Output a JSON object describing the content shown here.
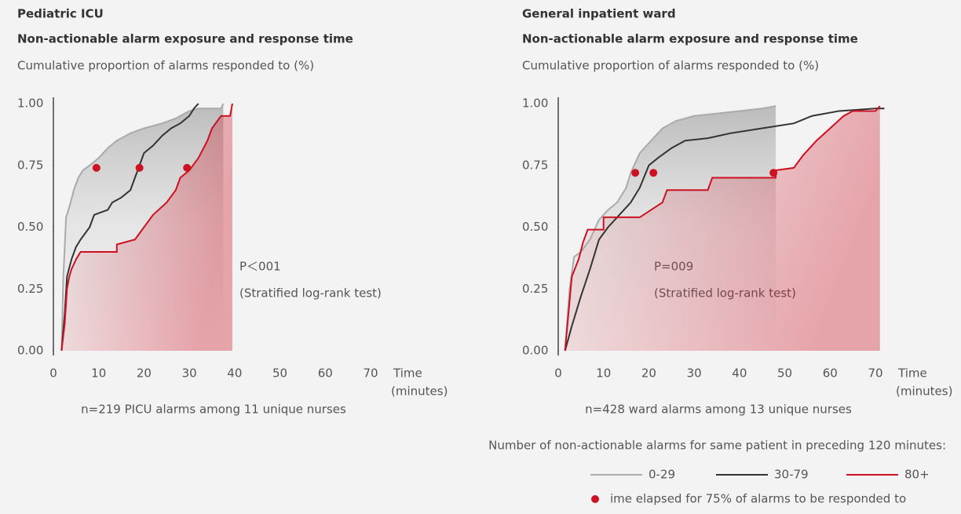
{
  "chart_data": [
    {
      "type": "line",
      "title": "Pediatric ICU",
      "subtitle": "Non-actionable alarm exposure and response time",
      "y_label": "Cumulative proportion of alarms responded to (%)",
      "x_label": [
        "Time",
        "(minutes)"
      ],
      "xlim": [
        0,
        70
      ],
      "xticks": [
        0,
        10,
        20,
        30,
        40,
        50,
        60,
        70
      ],
      "ylim": [
        0,
        1
      ],
      "yticks": [
        {
          "value": 0,
          "label": "0.00"
        },
        {
          "value": 0.25,
          "label": "0.25"
        },
        {
          "value": 0.5,
          "label": "0.50"
        },
        {
          "value": 0.75,
          "label": "0.75"
        },
        {
          "value": 1,
          "label": "1.00"
        }
      ],
      "annotation": [
        "P＜001",
        "(Stratified log-rank test)"
      ],
      "note": "n=219 PICU alarms among 11 unique nurses",
      "series": [
        {
          "name": "0-29",
          "color": "#aaaaaa",
          "x": [
            1.8,
            2.2,
            2.8,
            3.5,
            4.5,
            5.5,
            6.5,
            8,
            10,
            12,
            14,
            17,
            20,
            24,
            27,
            30,
            32,
            37,
            37.5
          ],
          "values": [
            0,
            0.3,
            0.54,
            0.58,
            0.65,
            0.7,
            0.73,
            0.75,
            0.78,
            0.82,
            0.85,
            0.88,
            0.9,
            0.92,
            0.94,
            0.97,
            0.98,
            0.98,
            1
          ]
        },
        {
          "name": "30-79",
          "color": "#333333",
          "x": [
            1.8,
            2.5,
            3,
            4,
            5,
            6,
            8,
            9,
            12,
            13,
            15,
            17,
            18,
            19,
            20,
            22,
            24,
            26,
            28,
            30,
            31,
            32
          ],
          "values": [
            0,
            0.15,
            0.3,
            0.37,
            0.42,
            0.45,
            0.5,
            0.55,
            0.57,
            0.6,
            0.62,
            0.65,
            0.7,
            0.75,
            0.8,
            0.83,
            0.87,
            0.9,
            0.92,
            0.95,
            0.98,
            1
          ]
        },
        {
          "name": "80+",
          "color": "#cc1122",
          "x": [
            1.8,
            2.5,
            3,
            3.5,
            4,
            5,
            6,
            14,
            14,
            18,
            20,
            22,
            25,
            27,
            28,
            30,
            32,
            34,
            35,
            37,
            39,
            39.5
          ],
          "values": [
            0,
            0.11,
            0.25,
            0.3,
            0.33,
            0.37,
            0.4,
            0.4,
            0.43,
            0.45,
            0.5,
            0.55,
            0.6,
            0.65,
            0.7,
            0.73,
            0.78,
            0.85,
            0.9,
            0.95,
            0.95,
            1
          ]
        }
      ],
      "markers": {
        "name": "ime elapsed for 75% of alarms to be responded to",
        "color": "#cc1122",
        "x": [
          9.5,
          19,
          29.5
        ],
        "values": [
          0.74,
          0.74,
          0.74
        ]
      }
    },
    {
      "type": "line",
      "title": "General inpatient ward",
      "subtitle": "Non-actionable alarm exposure and response time",
      "y_label": "Cumulative proportion of alarms responded to (%)",
      "x_label": [
        "Time",
        "(minutes)"
      ],
      "xlim": [
        0,
        70
      ],
      "xticks": [
        0,
        10,
        20,
        30,
        40,
        50,
        60,
        70
      ],
      "ylim": [
        0,
        1
      ],
      "yticks": [
        {
          "value": 0,
          "label": "0.00"
        },
        {
          "value": 0.25,
          "label": "0.25"
        },
        {
          "value": 0.5,
          "label": "0.50"
        },
        {
          "value": 0.75,
          "label": "0.75"
        },
        {
          "value": 1,
          "label": "1.00"
        }
      ],
      "annotation": [
        "P=009",
        "(Stratified log-rank test)"
      ],
      "note": "n=428 ward alarms among 13 unique nurses",
      "series": [
        {
          "color": "#aaaaaa",
          "x": [
            1.5,
            2.5,
            3.5,
            5,
            7,
            9,
            11,
            13,
            15,
            16,
            17,
            18,
            19,
            21,
            23,
            26,
            30,
            35,
            40,
            45,
            48
          ],
          "values": [
            0,
            0.25,
            0.38,
            0.4,
            0.45,
            0.53,
            0.57,
            0.6,
            0.66,
            0.72,
            0.76,
            0.8,
            0.82,
            0.86,
            0.9,
            0.93,
            0.95,
            0.96,
            0.97,
            0.98,
            0.99
          ]
        },
        {
          "color": "#333333",
          "x": [
            1.5,
            3,
            5,
            7,
            9,
            11,
            13,
            16,
            18,
            20,
            22,
            25,
            28,
            33,
            38,
            45,
            52,
            56,
            62,
            70,
            72
          ],
          "values": [
            0,
            0.1,
            0.22,
            0.33,
            0.45,
            0.5,
            0.54,
            0.6,
            0.66,
            0.75,
            0.78,
            0.82,
            0.85,
            0.86,
            0.88,
            0.9,
            0.92,
            0.95,
            0.97,
            0.98,
            0.98
          ]
        },
        {
          "color": "#cc1122",
          "x": [
            1.5,
            2.5,
            3,
            4.5,
            5.5,
            6.5,
            10,
            10,
            18,
            23,
            24,
            33,
            34,
            48,
            48,
            52,
            54,
            57,
            60,
            63,
            65,
            70,
            71
          ],
          "values": [
            0,
            0.2,
            0.3,
            0.37,
            0.44,
            0.49,
            0.49,
            0.54,
            0.54,
            0.6,
            0.65,
            0.65,
            0.7,
            0.7,
            0.73,
            0.74,
            0.79,
            0.85,
            0.9,
            0.95,
            0.97,
            0.97,
            0.99
          ]
        }
      ],
      "markers": {
        "color": "#cc1122",
        "x": [
          17,
          21,
          47.5
        ],
        "values": [
          0.72,
          0.72,
          0.72
        ]
      }
    }
  ],
  "legend": {
    "title": "Number of non-actionable alarms for same patient in preceding 120 minutes:"
  }
}
